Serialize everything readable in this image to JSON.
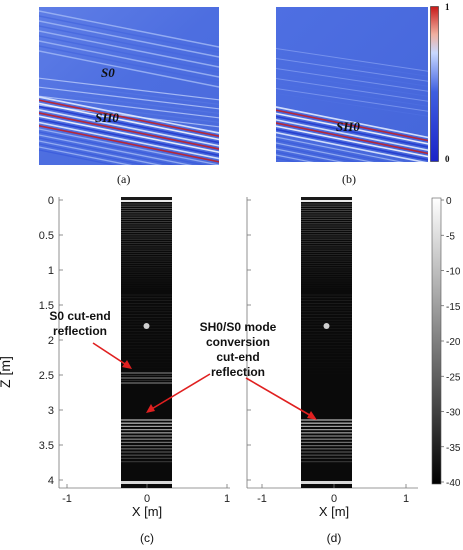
{
  "figure": {
    "panels_top": {
      "a": {
        "label": "(a)",
        "modes": [
          "S0",
          "SH0"
        ]
      },
      "b": {
        "label": "(b)",
        "modes": [
          "SH0"
        ]
      },
      "colorbar": {
        "max": "1",
        "min": "0",
        "colors": [
          "#e8f0ff",
          "#4466ee",
          "#1a22c8",
          "#d02020"
        ]
      }
    },
    "panels_bottom": {
      "c": {
        "label": "(c)"
      },
      "d": {
        "label": "(d)"
      },
      "y_axis_label": "Z [m]",
      "x_axis_label": "X [m]",
      "y_ticks": [
        "0",
        "0.5",
        "1",
        "1.5",
        "2",
        "2.5",
        "3",
        "3.5",
        "4"
      ],
      "x_ticks": [
        "-1",
        "0",
        "1"
      ],
      "colorbar_ticks": [
        "0",
        "-5",
        "-10",
        "-15",
        "-20",
        "-25",
        "-30",
        "-35",
        "-40"
      ],
      "annotations": {
        "left": [
          "S0 cut-end",
          "reflection"
        ],
        "middle": [
          "SH0/S0 mode",
          "conversion",
          "cut-end",
          "reflection"
        ]
      },
      "arrow_color": "#e02020"
    }
  }
}
